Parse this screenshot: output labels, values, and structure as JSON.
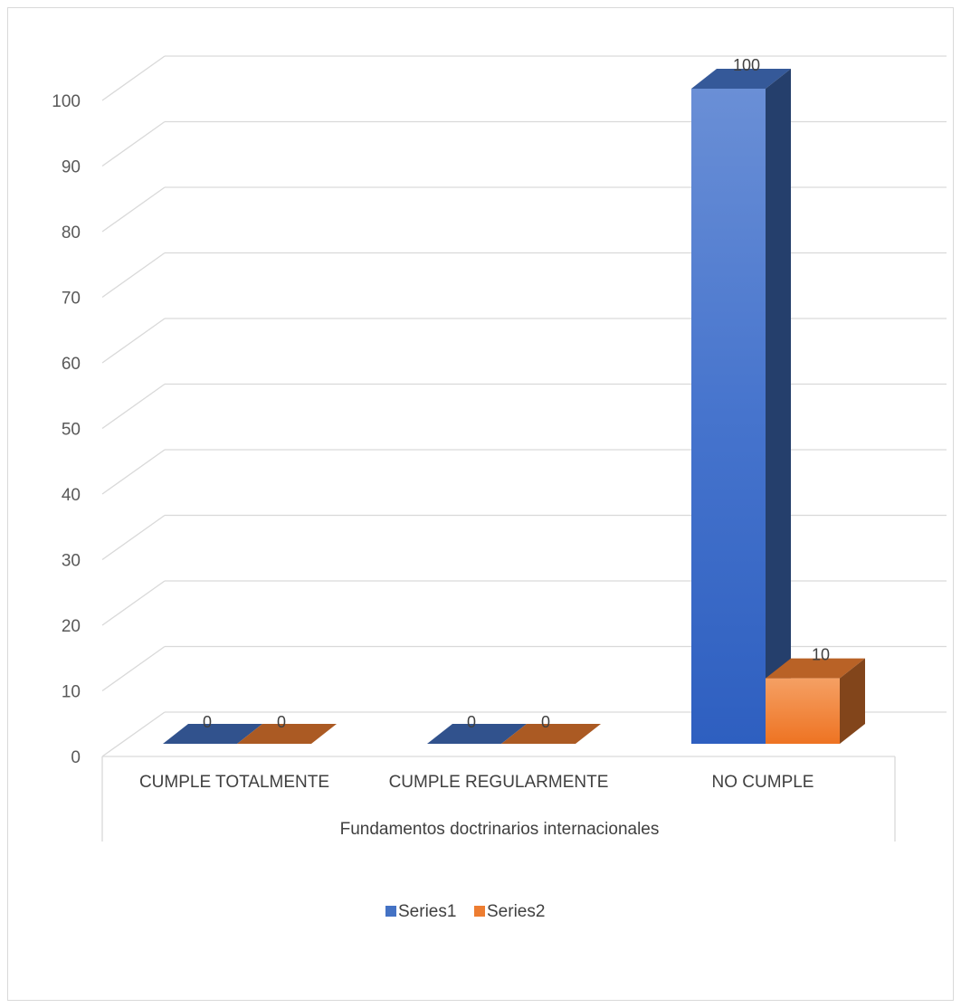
{
  "chart_data": {
    "type": "bar",
    "three_d": true,
    "categories": [
      "CUMPLE TOTALMENTE",
      "CUMPLE REGULARMENTE",
      "NO CUMPLE"
    ],
    "series": [
      {
        "name": "Series1",
        "values": [
          0,
          0,
          100
        ],
        "color": "#4472c4"
      },
      {
        "name": "Series2",
        "values": [
          0,
          0,
          10
        ],
        "color": "#ed7d31"
      }
    ],
    "xlabel": "Fundamentos doctrinarios  internacionales",
    "ylabel": "",
    "ylim": [
      0,
      100
    ],
    "yticks": [
      0,
      10,
      20,
      30,
      40,
      50,
      60,
      70,
      80,
      90,
      100
    ],
    "grid": true,
    "legend": "bottom",
    "data_labels": true
  }
}
